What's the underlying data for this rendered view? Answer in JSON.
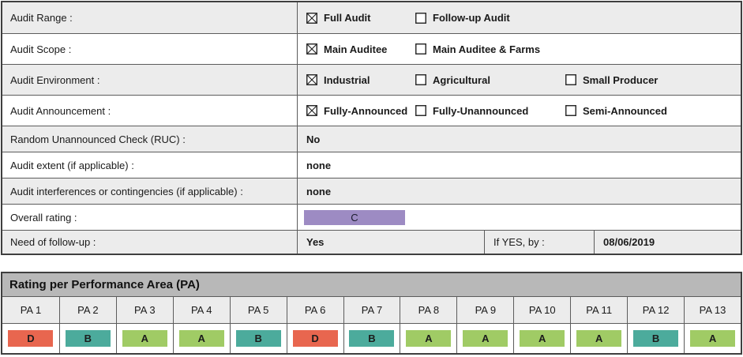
{
  "form": {
    "rows": [
      {
        "type": "checkboxes",
        "label": "Audit Range :",
        "options": [
          {
            "label": "Full Audit",
            "checked": true
          },
          {
            "label": "Follow-up Audit",
            "checked": false
          }
        ]
      },
      {
        "type": "checkboxes",
        "label": "Audit Scope :",
        "options": [
          {
            "label": "Main Auditee",
            "checked": true
          },
          {
            "label": "Main Auditee & Farms",
            "checked": false
          }
        ]
      },
      {
        "type": "checkboxes",
        "label": "Audit Environment :",
        "options": [
          {
            "label": "Industrial",
            "checked": true
          },
          {
            "label": "Agricultural",
            "checked": false
          },
          {
            "label": "Small Producer",
            "checked": false
          }
        ]
      },
      {
        "type": "checkboxes",
        "label": "Audit Announcement :",
        "options": [
          {
            "label": "Fully-Announced",
            "checked": true
          },
          {
            "label": "Fully-Unannounced",
            "checked": false
          },
          {
            "label": "Semi-Announced",
            "checked": false
          }
        ]
      },
      {
        "type": "text",
        "label": "Random Unannounced Check (RUC) :",
        "value": "No"
      },
      {
        "type": "text",
        "label": "Audit extent (if applicable) :",
        "value": "none"
      },
      {
        "type": "text",
        "label": "Audit interferences or contingencies (if applicable) :",
        "value": "none"
      },
      {
        "type": "rating",
        "label": "Overall rating :",
        "rating": "C"
      },
      {
        "type": "followup",
        "label": "Need of follow-up :",
        "value": "Yes",
        "if_yes_label": "If YES, by :",
        "if_yes_date": "08/06/2019"
      }
    ]
  },
  "pa_section": {
    "title": "Rating per Performance Area (PA)",
    "columns": [
      "PA 1",
      "PA 2",
      "PA 3",
      "PA 4",
      "PA 5",
      "PA 6",
      "PA 7",
      "PA 8",
      "PA 9",
      "PA 10",
      "PA 11",
      "PA 12",
      "PA 13"
    ],
    "ratings": [
      "D",
      "B",
      "A",
      "A",
      "B",
      "D",
      "B",
      "A",
      "A",
      "A",
      "A",
      "B",
      "A"
    ]
  },
  "colors": {
    "rating_A": "#a0cb65",
    "rating_B": "#4cab9c",
    "rating_C": "#9d8bc3",
    "rating_D": "#e8664f",
    "row_alt": "#ececec",
    "section_header_bg": "#b8b8b8"
  }
}
